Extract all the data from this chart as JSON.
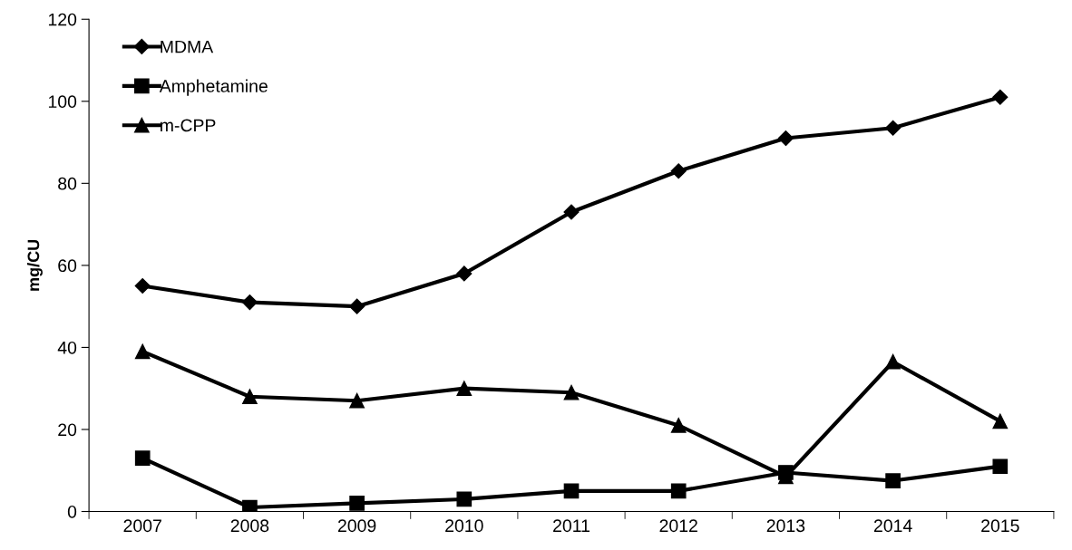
{
  "chart_data": {
    "type": "line",
    "ylabel": "mg/CU",
    "categories": [
      "2007",
      "2008",
      "2009",
      "2010",
      "2011",
      "2012",
      "2013",
      "2014",
      "2015"
    ],
    "series": [
      {
        "name": "MDMA",
        "color": "#000000",
        "marker": "diamond",
        "values": [
          55,
          51,
          50,
          58,
          73,
          83,
          91,
          93.5,
          101
        ]
      },
      {
        "name": "Amphetamine",
        "color": "#000000",
        "marker": "square",
        "values": [
          13,
          1,
          2,
          3,
          5,
          5,
          9.5,
          7.5,
          11
        ]
      },
      {
        "name": "m-CPP",
        "color": "#000000",
        "marker": "triangle",
        "values": [
          39,
          28,
          27,
          30,
          29,
          21,
          8.5,
          36.5,
          22
        ]
      }
    ],
    "ylim": [
      0,
      120
    ],
    "yticks": [
      0,
      20,
      40,
      60,
      80,
      100,
      120
    ],
    "grid": false,
    "legend": "top left",
    "line_style": "solid"
  }
}
